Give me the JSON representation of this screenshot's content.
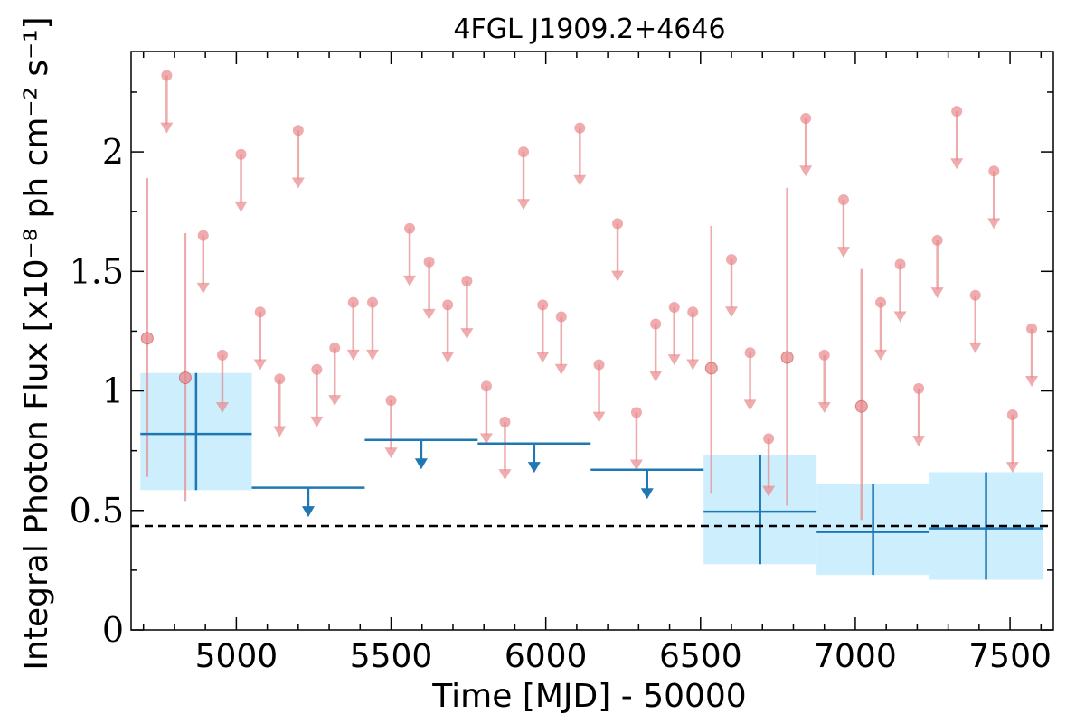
{
  "chart_data": {
    "type": "scatter",
    "title": "4FGL J1909.2+4646",
    "xlabel": "Time [MJD] - 50000",
    "ylabel": "Integral Photon Flux [x10⁻⁸ ph cm⁻² s⁻¹]",
    "xlim": [
      4660,
      7640
    ],
    "ylim": [
      0,
      2.42
    ],
    "xticks": [
      5000,
      5500,
      6000,
      6500,
      7000,
      7500
    ],
    "yticks": [
      0,
      0.5,
      1,
      1.5,
      2
    ],
    "ytick_labels": [
      "0",
      "0.5",
      "1",
      "1.5",
      "2"
    ],
    "reference_line": {
      "y": 0.435,
      "style": "dashed",
      "color": "#000000"
    },
    "colors": {
      "short_bins": "#e8888a",
      "long_bins": "#1f77b4",
      "band": "#cdeefc"
    },
    "short_bins": {
      "detections": [
        {
          "x": 4712,
          "y": 1.22,
          "lo": 0.64,
          "hi": 1.89
        },
        {
          "x": 4835,
          "y": 1.055,
          "lo": 0.54,
          "hi": 1.66
        },
        {
          "x": 6535,
          "y": 1.095,
          "lo": 0.57,
          "hi": 1.69
        },
        {
          "x": 6780,
          "y": 1.14,
          "lo": 0.52,
          "hi": 1.85
        },
        {
          "x": 7020,
          "y": 0.935,
          "lo": 0.46,
          "hi": 1.51
        }
      ],
      "upper_limits": [
        {
          "x": 4775,
          "y": 2.32
        },
        {
          "x": 4893,
          "y": 1.65
        },
        {
          "x": 4955,
          "y": 1.15
        },
        {
          "x": 5015,
          "y": 1.99
        },
        {
          "x": 5077,
          "y": 1.33
        },
        {
          "x": 5140,
          "y": 1.05
        },
        {
          "x": 5200,
          "y": 2.09
        },
        {
          "x": 5260,
          "y": 1.09
        },
        {
          "x": 5318,
          "y": 1.18
        },
        {
          "x": 5378,
          "y": 1.37
        },
        {
          "x": 5440,
          "y": 1.37
        },
        {
          "x": 5500,
          "y": 0.96
        },
        {
          "x": 5560,
          "y": 1.68
        },
        {
          "x": 5623,
          "y": 1.54
        },
        {
          "x": 5683,
          "y": 1.36
        },
        {
          "x": 5745,
          "y": 1.46
        },
        {
          "x": 5808,
          "y": 1.02
        },
        {
          "x": 5868,
          "y": 0.87
        },
        {
          "x": 5928,
          "y": 2.0
        },
        {
          "x": 5990,
          "y": 1.36
        },
        {
          "x": 6050,
          "y": 1.31
        },
        {
          "x": 6110,
          "y": 2.1
        },
        {
          "x": 6172,
          "y": 1.11
        },
        {
          "x": 6232,
          "y": 1.7
        },
        {
          "x": 6293,
          "y": 0.91
        },
        {
          "x": 6355,
          "y": 1.28
        },
        {
          "x": 6415,
          "y": 1.35
        },
        {
          "x": 6475,
          "y": 1.33
        },
        {
          "x": 6600,
          "y": 1.55
        },
        {
          "x": 6660,
          "y": 1.16
        },
        {
          "x": 6720,
          "y": 0.8
        },
        {
          "x": 6840,
          "y": 2.14
        },
        {
          "x": 6900,
          "y": 1.15
        },
        {
          "x": 6962,
          "y": 1.8
        },
        {
          "x": 7082,
          "y": 1.37
        },
        {
          "x": 7145,
          "y": 1.53
        },
        {
          "x": 7205,
          "y": 1.01
        },
        {
          "x": 7265,
          "y": 1.63
        },
        {
          "x": 7328,
          "y": 2.17
        },
        {
          "x": 7388,
          "y": 1.4
        },
        {
          "x": 7448,
          "y": 1.92
        },
        {
          "x": 7508,
          "y": 0.9
        },
        {
          "x": 7570,
          "y": 1.26
        }
      ]
    },
    "long_bins": {
      "detections": [
        {
          "x0": 4690,
          "x1": 5050,
          "y": 0.82,
          "lo": 0.585,
          "hi": 1.075
        },
        {
          "x0": 6510,
          "x1": 6875,
          "y": 0.495,
          "lo": 0.275,
          "hi": 0.73
        },
        {
          "x0": 6875,
          "x1": 7240,
          "y": 0.41,
          "lo": 0.23,
          "hi": 0.61
        },
        {
          "x0": 7240,
          "x1": 7605,
          "y": 0.425,
          "lo": 0.21,
          "hi": 0.66
        }
      ],
      "upper_limits": [
        {
          "x0": 5050,
          "x1": 5415,
          "y": 0.595
        },
        {
          "x0": 5415,
          "x1": 5780,
          "y": 0.795
        },
        {
          "x0": 5780,
          "x1": 6145,
          "y": 0.78
        },
        {
          "x0": 6145,
          "x1": 6510,
          "y": 0.67
        }
      ]
    }
  }
}
